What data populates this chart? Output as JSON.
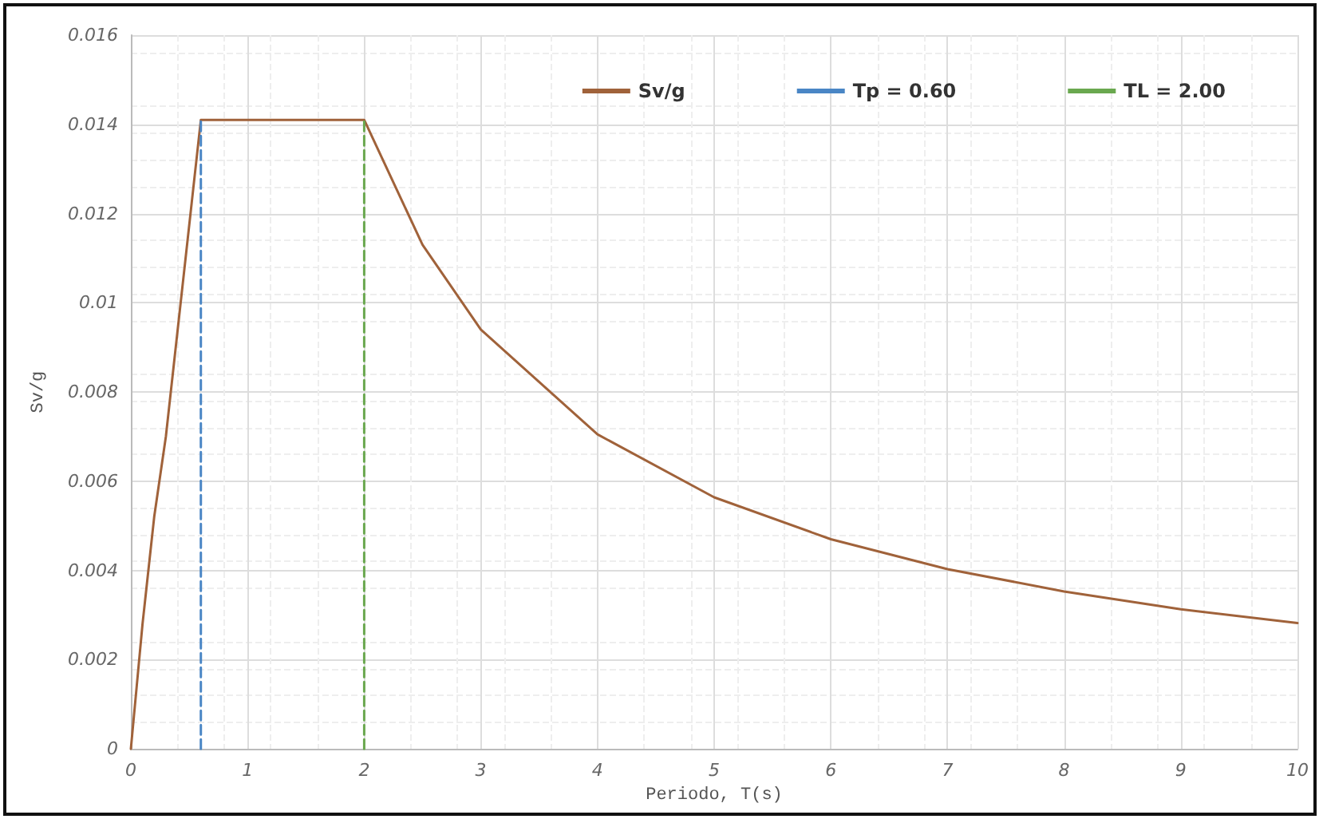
{
  "chart_data": {
    "type": "line",
    "xlabel": "Periodo, T(s)",
    "ylabel": "Sv/g",
    "series": [
      {
        "name": "Sv/g",
        "color": "#a0623a",
        "x": [
          0,
          0.05,
          0.1,
          0.2,
          0.3,
          0.6,
          2,
          2.5,
          3,
          4,
          5,
          6,
          7,
          8,
          9,
          10
        ],
        "values": [
          0,
          0.0014,
          0.0028,
          0.0052,
          0.007,
          0.0141,
          0.0141,
          0.0113,
          0.0094,
          0.00705,
          0.00564,
          0.0047,
          0.00403,
          0.00353,
          0.00313,
          0.00282
        ]
      },
      {
        "name": "Tp = 0.60",
        "color": "#4a86c5",
        "x": [
          0.6,
          0.6
        ],
        "values": [
          0,
          0.0141
        ],
        "line_style": "dashed"
      },
      {
        "name": "TL = 2.00",
        "color": "#6aa84f",
        "x": [
          2,
          2
        ],
        "values": [
          0,
          0.0141
        ],
        "line_style": "dashed"
      }
    ],
    "xlim": [
      0,
      10
    ],
    "xticks": [
      0,
      1,
      2,
      3,
      4,
      5,
      6,
      7,
      8,
      9,
      10
    ],
    "ylim": [
      0,
      0.016
    ],
    "yticks": [
      0,
      0.002,
      0.004,
      0.006,
      0.008,
      0.01,
      0.012,
      0.014,
      0.016
    ],
    "grid": true,
    "legend": "top right",
    "marker": "none",
    "line_style": "solid"
  }
}
